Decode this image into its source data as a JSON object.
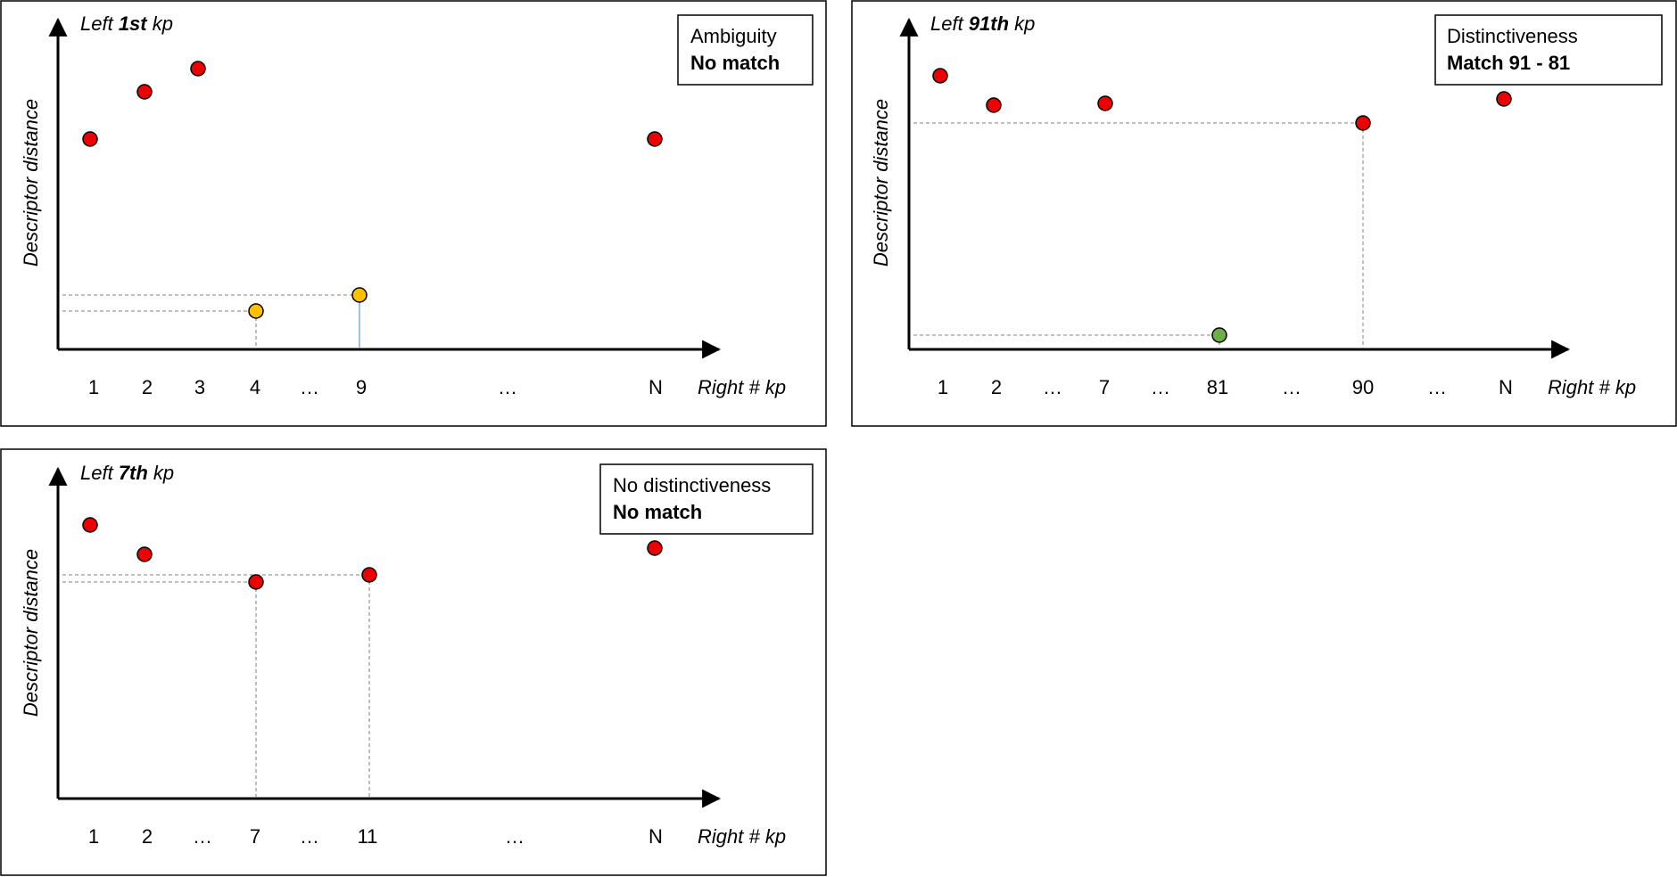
{
  "colors": {
    "red": "#ee0000",
    "orange": "#ffc000",
    "green": "#70ad47",
    "status_red": "#ff0000",
    "status_green": "#70ad47",
    "guide": "#7f7f7f",
    "blue_guide": "#5b9bd5"
  },
  "panels": [
    {
      "title_prefix": "Left ",
      "title_bold": "1st",
      "title_suffix": " kp",
      "ylabel": "Descriptor distance",
      "xlabel": "Right # kp",
      "ticks": [
        "1",
        "2",
        "3",
        "4",
        "…",
        "9",
        "…",
        "N"
      ],
      "box_line1": "Ambiguity",
      "box_line2": "No match",
      "box_line2_color": "#ff0000"
    },
    {
      "title_prefix": "Left ",
      "title_bold": "91th",
      "title_suffix": " kp",
      "ylabel": "Descriptor distance",
      "xlabel": "Right # kp",
      "ticks": [
        "1",
        "2",
        "…",
        "7",
        "…",
        "81",
        "…",
        "90",
        "…",
        "N"
      ],
      "box_line1": "Distinctiveness",
      "box_line2": "Match 91 - 81",
      "box_line2_color": "#70ad47"
    },
    {
      "title_prefix": "Left ",
      "title_bold": "7th",
      "title_suffix": " kp",
      "ylabel": "Descriptor distance",
      "xlabel": "Right # kp",
      "ticks": [
        "1",
        "2",
        "…",
        "7",
        "…",
        "11",
        "…",
        "N"
      ],
      "box_line1": "No distinctiveness",
      "box_line2": "No match",
      "box_line2_color": "#ff0000"
    }
  ]
}
